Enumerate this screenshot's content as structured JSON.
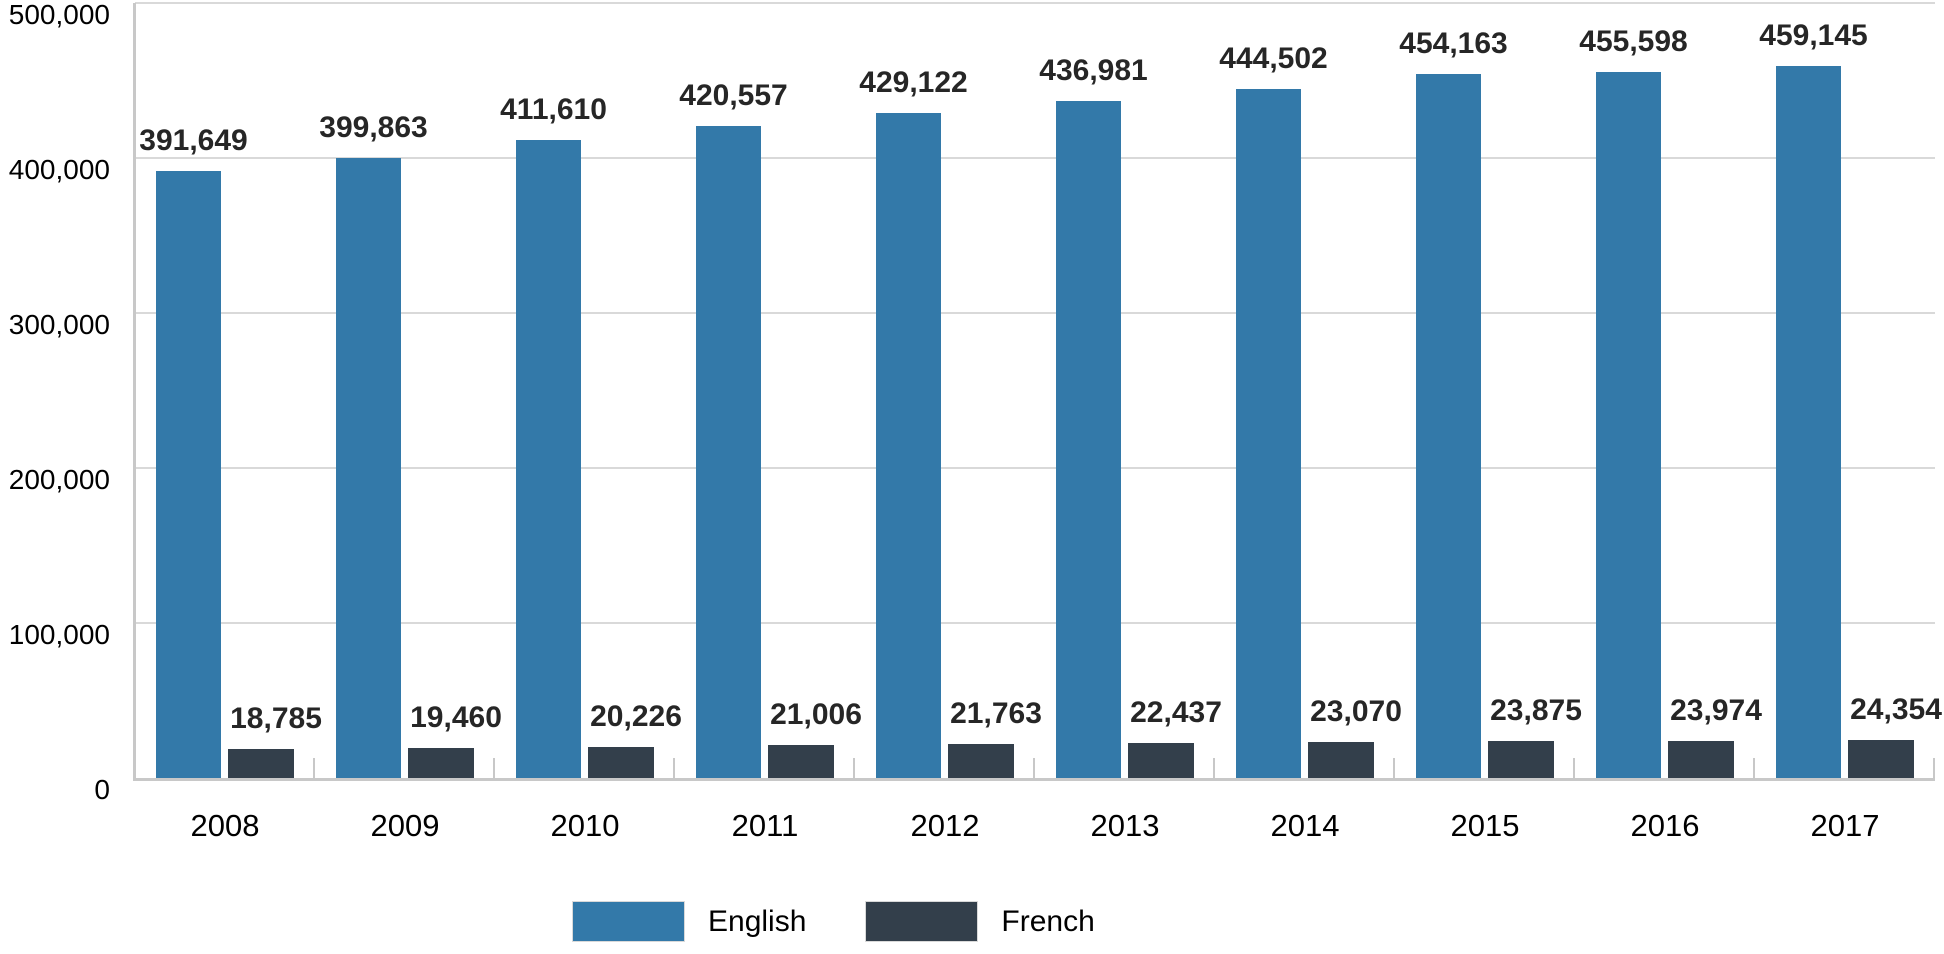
{
  "chart_data": {
    "type": "bar",
    "categories": [
      "2008",
      "2009",
      "2010",
      "2011",
      "2012",
      "2013",
      "2014",
      "2015",
      "2016",
      "2017"
    ],
    "series": [
      {
        "name": "English",
        "color": "#3379A9",
        "values": [
          391649,
          399863,
          411610,
          420557,
          429122,
          436981,
          444502,
          454163,
          455598,
          459145
        ],
        "value_labels": [
          "391,649",
          "399,863",
          "411,610",
          "420,557",
          "429,122",
          "436,981",
          "444,502",
          "454,163",
          "455,598",
          "459,145"
        ]
      },
      {
        "name": "French",
        "color": "#333F4B",
        "values": [
          18785,
          19460,
          20226,
          21006,
          21763,
          22437,
          23070,
          23875,
          23974,
          24354
        ],
        "value_labels": [
          "18,785",
          "19,460",
          "20,226",
          "21,006",
          "21,763",
          "22,437",
          "23,070",
          "23,875",
          "23,974",
          "24,354"
        ]
      }
    ],
    "xlabel": "",
    "ylabel": "",
    "ylim": [
      0,
      500000
    ],
    "yticks": [
      0,
      100000,
      200000,
      300000,
      400000,
      500000
    ],
    "ytick_labels": [
      "0",
      "100,000",
      "200,000",
      "300,000",
      "400,000",
      "500,000"
    ],
    "grid": "horizontal",
    "data_labels": "outside-end",
    "legend_position": "bottom"
  },
  "legend": {
    "items": [
      {
        "label": "English",
        "color": "#3379A9"
      },
      {
        "label": "French",
        "color": "#333F4B"
      }
    ]
  },
  "colors": {
    "bar_english": "#3379A9",
    "bar_french": "#333F4B",
    "gridline": "#D9D9D9",
    "axis": "#C8C8C8",
    "data_label": "#262626",
    "tick_label": "#000000",
    "background": "#FFFFFF"
  }
}
